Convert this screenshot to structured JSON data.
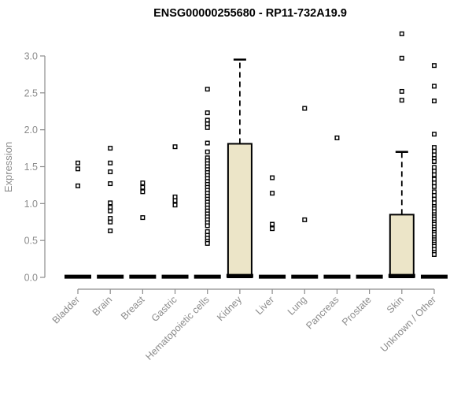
{
  "chart_data": {
    "type": "boxplot",
    "title": "ENSG00000255680 - RP11-732A19.9",
    "ylabel": "Expression",
    "ylim": [
      0,
      3.3
    ],
    "ytick_labels": [
      "0.0",
      "0.5",
      "1.0",
      "1.5",
      "2.0",
      "2.5",
      "3.0"
    ],
    "grid": false,
    "legend": "none",
    "categories": [
      "Bladder",
      "Brain",
      "Breast",
      "Gastric",
      "Hematopoietic cells",
      "Kidney",
      "Liver",
      "Lung",
      "Pancreas",
      "Prostate",
      "Skin",
      "Unknown / Other"
    ],
    "boxes": [
      {
        "category": "Bladder",
        "q1": 0.0,
        "median": 0.01,
        "q3": 0.02,
        "whisker_low": 0.0,
        "whisker_high": 0.02
      },
      {
        "category": "Brain",
        "q1": 0.0,
        "median": 0.01,
        "q3": 0.02,
        "whisker_low": 0.0,
        "whisker_high": 0.02
      },
      {
        "category": "Breast",
        "q1": 0.0,
        "median": 0.01,
        "q3": 0.02,
        "whisker_low": 0.0,
        "whisker_high": 0.02
      },
      {
        "category": "Gastric",
        "q1": 0.0,
        "median": 0.01,
        "q3": 0.02,
        "whisker_low": 0.0,
        "whisker_high": 0.02
      },
      {
        "category": "Hematopoietic cells",
        "q1": 0.0,
        "median": 0.01,
        "q3": 0.02,
        "whisker_low": 0.0,
        "whisker_high": 0.02
      },
      {
        "category": "Kidney",
        "q1": 0.0,
        "median": 0.02,
        "q3": 1.81,
        "whisker_low": 0.0,
        "whisker_high": 2.95
      },
      {
        "category": "Liver",
        "q1": 0.0,
        "median": 0.01,
        "q3": 0.02,
        "whisker_low": 0.0,
        "whisker_high": 0.02
      },
      {
        "category": "Lung",
        "q1": 0.0,
        "median": 0.01,
        "q3": 0.02,
        "whisker_low": 0.0,
        "whisker_high": 0.02
      },
      {
        "category": "Pancreas",
        "q1": 0.0,
        "median": 0.01,
        "q3": 0.02,
        "whisker_low": 0.0,
        "whisker_high": 0.02
      },
      {
        "category": "Prostate",
        "q1": 0.0,
        "median": 0.01,
        "q3": 0.02,
        "whisker_low": 0.0,
        "whisker_high": 0.02
      },
      {
        "category": "Skin",
        "q1": 0.0,
        "median": 0.02,
        "q3": 0.85,
        "whisker_low": 0.0,
        "whisker_high": 1.7
      },
      {
        "category": "Unknown / Other",
        "q1": 0.0,
        "median": 0.01,
        "q3": 0.02,
        "whisker_low": 0.0,
        "whisker_high": 0.02
      }
    ],
    "points": {
      "Bladder": [
        1.55,
        1.47,
        1.24
      ],
      "Brain": [
        1.75,
        1.55,
        1.43,
        1.27,
        1.01,
        0.95,
        0.9,
        0.8,
        0.75,
        0.63
      ],
      "Breast": [
        1.28,
        1.22,
        1.16,
        0.81
      ],
      "Gastric": [
        1.77,
        1.09,
        1.04,
        0.98
      ],
      "Hematopoietic cells": [
        2.55,
        2.23,
        2.13,
        2.08,
        2.03,
        1.82,
        1.7,
        1.62,
        1.58,
        1.54,
        1.5,
        1.46,
        1.42,
        1.38,
        1.34,
        1.3,
        1.26,
        1.22,
        1.18,
        1.14,
        1.1,
        1.06,
        1.02,
        0.98,
        0.94,
        0.9,
        0.86,
        0.82,
        0.78,
        0.74,
        0.7,
        0.62,
        0.57,
        0.53,
        0.49,
        0.46
      ],
      "Kidney": [],
      "Liver": [
        1.35,
        1.14,
        0.72,
        0.66
      ],
      "Lung": [
        2.29,
        0.78
      ],
      "Pancreas": [
        1.89
      ],
      "Prostate": [],
      "Skin": [
        3.3,
        2.97,
        2.52,
        2.4
      ],
      "Unknown / Other": [
        2.87,
        2.59,
        2.39,
        1.94,
        1.76,
        1.71,
        1.66,
        1.61,
        1.57,
        1.49,
        1.44,
        1.39,
        1.33,
        1.28,
        1.23,
        1.16,
        1.11,
        1.06,
        1.01,
        0.96,
        0.93,
        0.89,
        0.85,
        0.82,
        0.79,
        0.75,
        0.72,
        0.68,
        0.65,
        0.61,
        0.58,
        0.54,
        0.51,
        0.48,
        0.45,
        0.42,
        0.38,
        0.34,
        0.31
      ]
    },
    "colors": {
      "box_fill": "#ece5c8",
      "box_stroke": "#000000",
      "median": "#000000",
      "whisker": "#000000",
      "point_stroke": "#000000",
      "point_fill": "#ffffff",
      "axis": "#8c8c8c",
      "title": "#000000",
      "background": "#ffffff"
    }
  }
}
